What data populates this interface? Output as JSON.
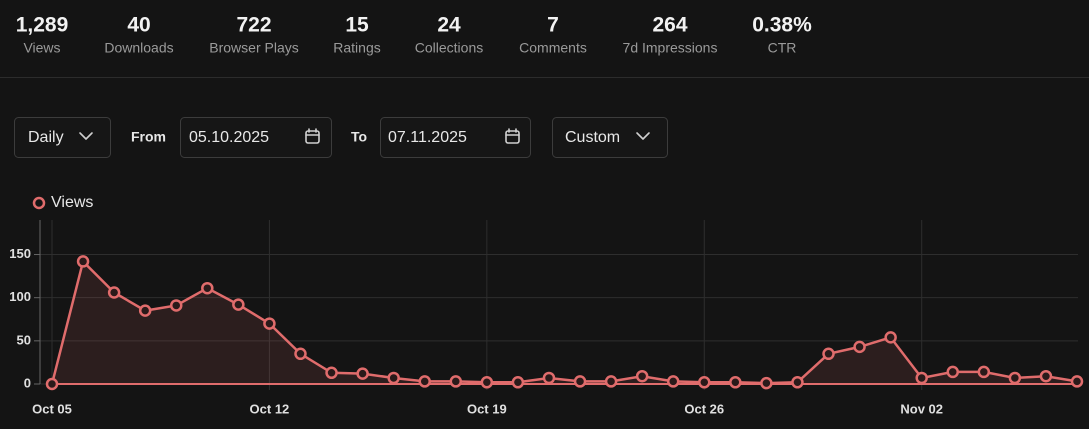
{
  "stats": [
    {
      "value": "1,289",
      "label": "Views"
    },
    {
      "value": "40",
      "label": "Downloads"
    },
    {
      "value": "722",
      "label": "Browser Plays"
    },
    {
      "value": "15",
      "label": "Ratings"
    },
    {
      "value": "24",
      "label": "Collections"
    },
    {
      "value": "7",
      "label": "Comments"
    },
    {
      "value": "264",
      "label": "7d Impressions"
    },
    {
      "value": "0.38%",
      "label": "CTR"
    }
  ],
  "controls": {
    "interval": "Daily",
    "from_label": "From",
    "from_date": "05.10.2025",
    "to_label": "To",
    "to_date": "07.11.2025",
    "range": "Custom"
  },
  "chart_data": {
    "type": "line",
    "categories": [
      "Oct 05",
      null,
      null,
      null,
      null,
      null,
      null,
      "Oct 12",
      null,
      null,
      null,
      null,
      null,
      null,
      "Oct 19",
      null,
      null,
      null,
      null,
      null,
      null,
      "Oct 26",
      null,
      null,
      null,
      null,
      null,
      null,
      "Nov 02",
      null,
      null,
      null,
      null,
      null
    ],
    "series": [
      {
        "name": "Views",
        "color": "#e06c6c",
        "values": [
          0,
          142,
          106,
          85,
          91,
          111,
          92,
          70,
          35,
          13,
          12,
          7,
          3,
          3,
          2,
          2,
          7,
          3,
          3,
          9,
          3,
          2,
          2,
          1,
          2,
          35,
          43,
          54,
          7,
          14,
          14,
          7,
          9,
          3
        ]
      }
    ],
    "ylim": [
      0,
      190
    ],
    "yticks": [
      0,
      50,
      100,
      150
    ],
    "grid": true
  }
}
